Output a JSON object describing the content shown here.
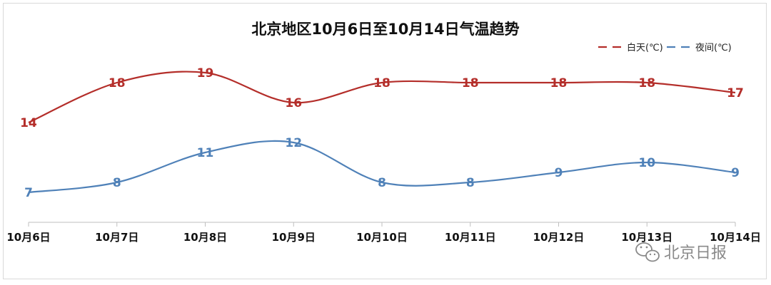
{
  "chart_data": {
    "type": "line",
    "title": "北京地区10月6日至10月14日气温趋势",
    "categories": [
      "10月6日",
      "10月7日",
      "10月8日",
      "10月9日",
      "10月10日",
      "10月11日",
      "10月12日",
      "10月13日",
      "10月14日"
    ],
    "series": [
      {
        "name": "白天(℃)",
        "color": "#b42e2a",
        "values": [
          14,
          18,
          19,
          16,
          18,
          18,
          18,
          18,
          17
        ]
      },
      {
        "name": "夜间(℃)",
        "color": "#4f81b8",
        "values": [
          7,
          8,
          11,
          12,
          8,
          8,
          9,
          10,
          9
        ]
      }
    ],
    "ylim": [
      4,
      22
    ],
    "grid": false,
    "legend": "top-right",
    "smooth": true
  },
  "watermark": {
    "text": "北京日报",
    "icon": "wechat-icon"
  }
}
